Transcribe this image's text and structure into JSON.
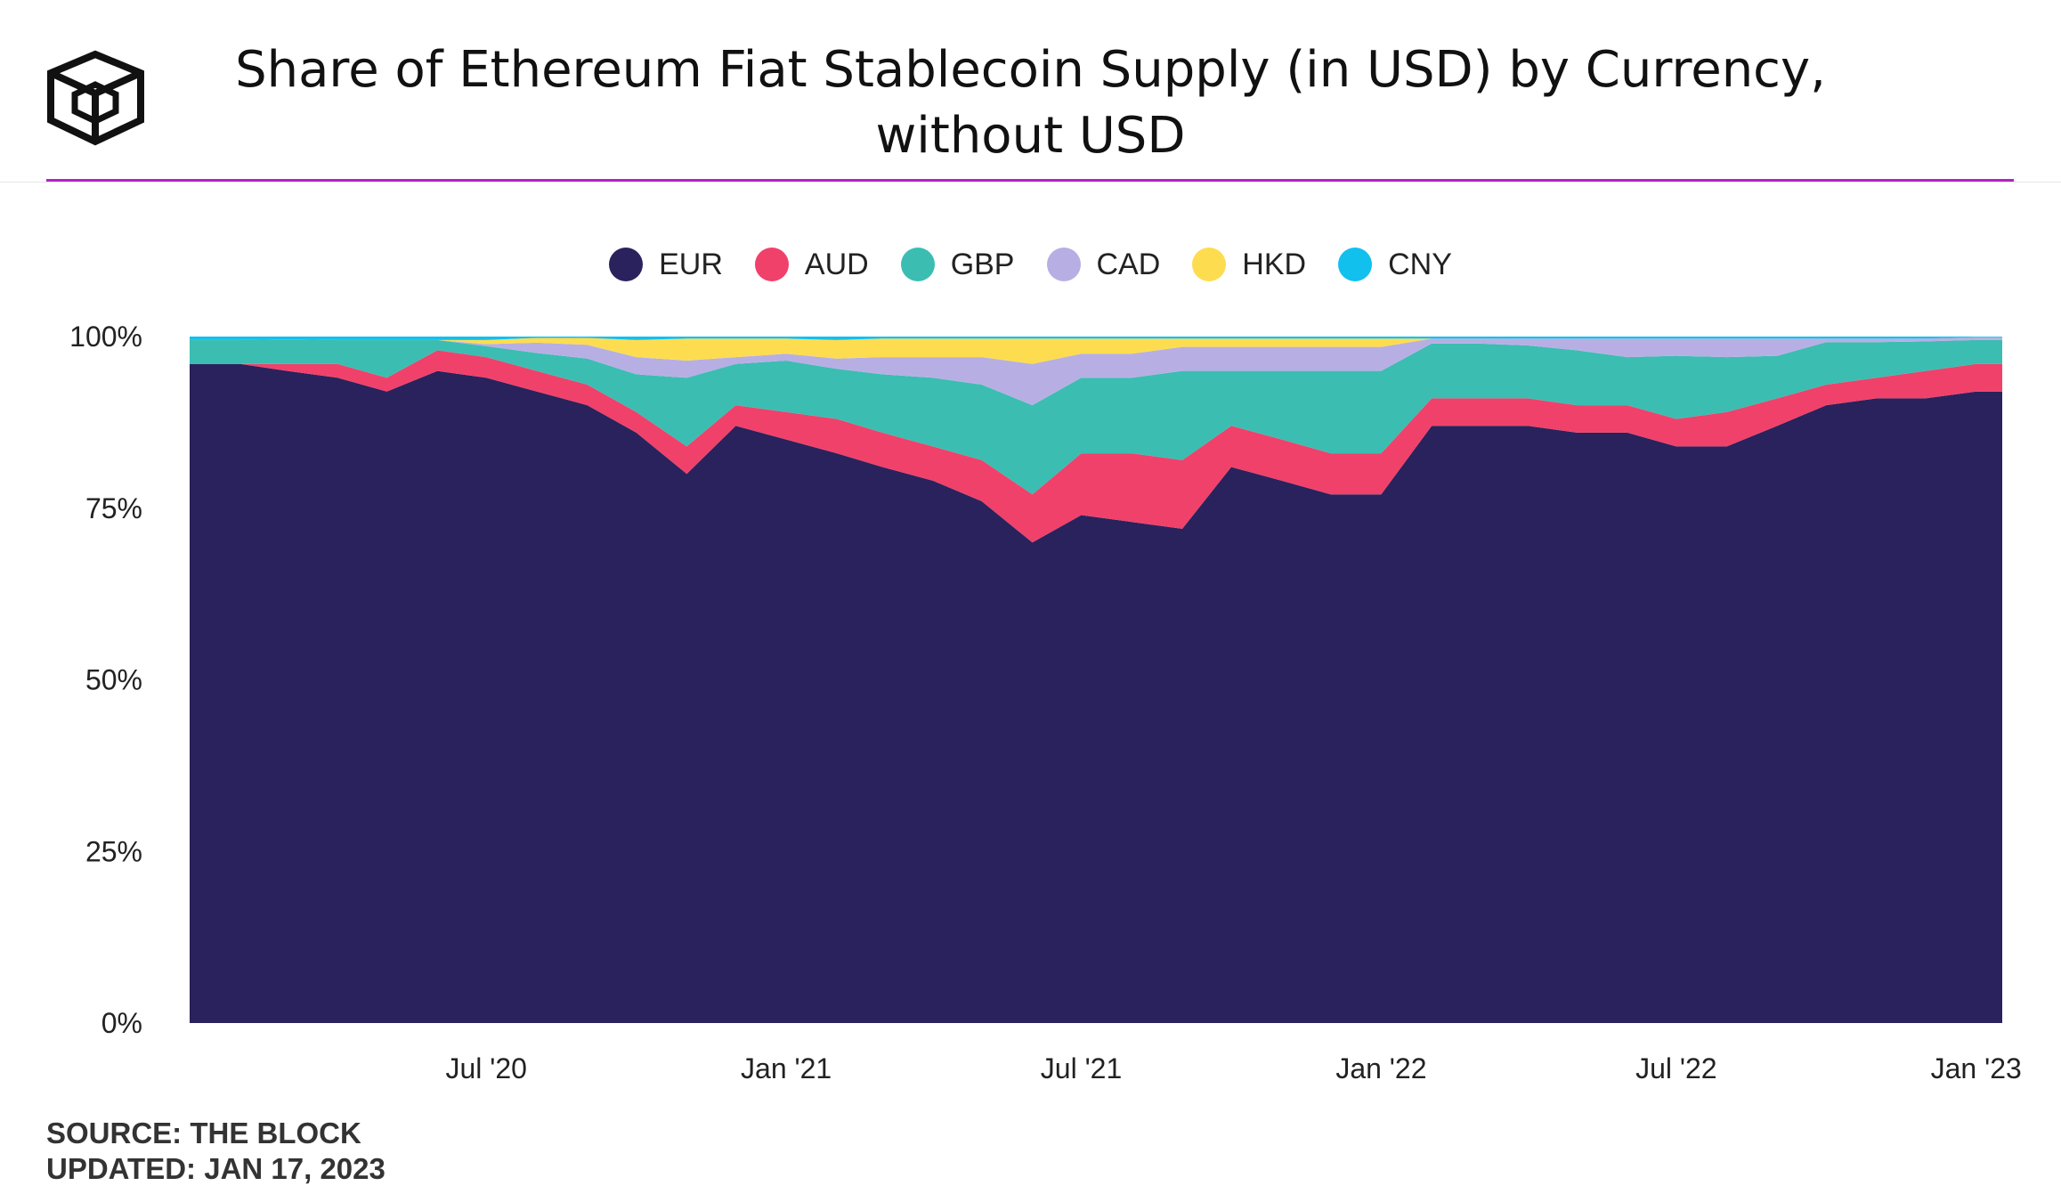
{
  "title_lines": [
    "Share of Ethereum Fiat Stablecoin Supply (in USD) by Currency,",
    "without USD"
  ],
  "logo_icon": "the-block-cube-logo-icon",
  "source": {
    "line1": "SOURCE: THE BLOCK",
    "line2": "UPDATED: JAN 17, 2023"
  },
  "colors": {
    "accent_line": "#b81fc8",
    "EUR": "#2a225c",
    "AUD": "#f0416a",
    "GBP": "#3bbdb2",
    "CAD": "#b7afe3",
    "HKD": "#fddd4f",
    "CNY": "#12c0ee"
  },
  "chart_data": {
    "type": "area",
    "stacked": true,
    "title": "Share of Ethereum Fiat Stablecoin Supply (in USD) by Currency, without USD",
    "xlabel": "",
    "ylabel": "",
    "ylim": [
      0,
      100
    ],
    "y_ticks": [
      "0%",
      "25%",
      "50%",
      "75%",
      "100%"
    ],
    "x_tick_labels": [
      "Jul '20",
      "Jan '21",
      "Jul '21",
      "Jan '22",
      "Jul '22",
      "Jan '23"
    ],
    "x_tick_dates": [
      "2020-07-01",
      "2021-01-01",
      "2021-07-01",
      "2022-01-01",
      "2022-07-01",
      "2023-01-01"
    ],
    "x": [
      "2020-01-01",
      "2020-02-01",
      "2020-03-01",
      "2020-04-01",
      "2020-05-01",
      "2020-06-01",
      "2020-07-01",
      "2020-08-01",
      "2020-09-01",
      "2020-10-01",
      "2020-11-01",
      "2020-12-01",
      "2021-01-01",
      "2021-02-01",
      "2021-03-01",
      "2021-04-01",
      "2021-05-01",
      "2021-06-01",
      "2021-07-01",
      "2021-08-01",
      "2021-09-01",
      "2021-10-01",
      "2021-11-01",
      "2021-12-01",
      "2022-01-01",
      "2022-02-01",
      "2022-03-01",
      "2022-04-01",
      "2022-05-01",
      "2022-06-01",
      "2022-07-01",
      "2022-08-01",
      "2022-09-01",
      "2022-10-01",
      "2022-11-01",
      "2022-12-01",
      "2023-01-01",
      "2023-01-17"
    ],
    "grid": false,
    "legend": "top-center",
    "series": [
      {
        "name": "EUR",
        "values": [
          96,
          96,
          95,
          94,
          92,
          95,
          94,
          92,
          90,
          86,
          80,
          87,
          85,
          83,
          81,
          79,
          76,
          70,
          74,
          73,
          72,
          81,
          79,
          77,
          77,
          87,
          87,
          87,
          86,
          86,
          84,
          84,
          87,
          90,
          91,
          91,
          92,
          92
        ]
      },
      {
        "name": "AUD",
        "values": [
          0,
          0,
          1,
          2,
          2,
          3,
          3,
          3,
          3,
          3,
          4,
          3,
          4,
          5,
          5,
          5,
          6,
          7,
          9,
          10,
          10,
          6,
          6,
          6,
          6,
          4,
          4,
          4,
          4,
          4,
          4,
          5,
          4,
          3,
          3,
          4,
          4,
          4
        ]
      },
      {
        "name": "GBP",
        "values": [
          3.5,
          3.5,
          3.6,
          3.5,
          5.5,
          1.5,
          1.6,
          2.6,
          3.8,
          5.5,
          10,
          6,
          7.5,
          7.3,
          8.5,
          10,
          11,
          13,
          11,
          11,
          13,
          8,
          10,
          12,
          12,
          8,
          8,
          7.7,
          8,
          7,
          9.2,
          8,
          6.2,
          6.2,
          5.2,
          4.3,
          3.5,
          3.5
        ]
      },
      {
        "name": "CAD",
        "values": [
          0,
          0,
          0,
          0,
          0,
          0,
          0.3,
          1.5,
          2,
          2.5,
          2.5,
          1,
          1,
          1.5,
          2.5,
          3,
          4,
          6,
          3.5,
          3.5,
          3.5,
          3.5,
          3.5,
          3.5,
          3.5,
          0.7,
          0.7,
          1,
          1.7,
          2.7,
          2.5,
          2.7,
          2.5,
          0.5,
          0.5,
          0.4,
          0.4,
          0.4
        ]
      },
      {
        "name": "HKD",
        "values": [
          0,
          0,
          0,
          0,
          0,
          0,
          0.6,
          0.7,
          1,
          2.5,
          3.2,
          2.7,
          2.2,
          2.7,
          2.7,
          2.7,
          2.7,
          3.7,
          2.2,
          2.2,
          1.2,
          1.2,
          1.2,
          1.2,
          1.2,
          0,
          0,
          0,
          0,
          0,
          0,
          0,
          0,
          0,
          0,
          0,
          0,
          0
        ]
      },
      {
        "name": "CNY",
        "values": [
          0.5,
          0.5,
          0.4,
          0.5,
          0.5,
          0.5,
          0.5,
          0.2,
          0.2,
          0.5,
          0.3,
          0.3,
          0.3,
          0.5,
          0.3,
          0.3,
          0.3,
          0.3,
          0.3,
          0.3,
          0.3,
          0.3,
          0.3,
          0.3,
          0.3,
          0.3,
          0.3,
          0.3,
          0.3,
          0.3,
          0.3,
          0.3,
          0.3,
          0.3,
          0.3,
          0.3,
          0.1,
          0.1
        ]
      }
    ]
  }
}
